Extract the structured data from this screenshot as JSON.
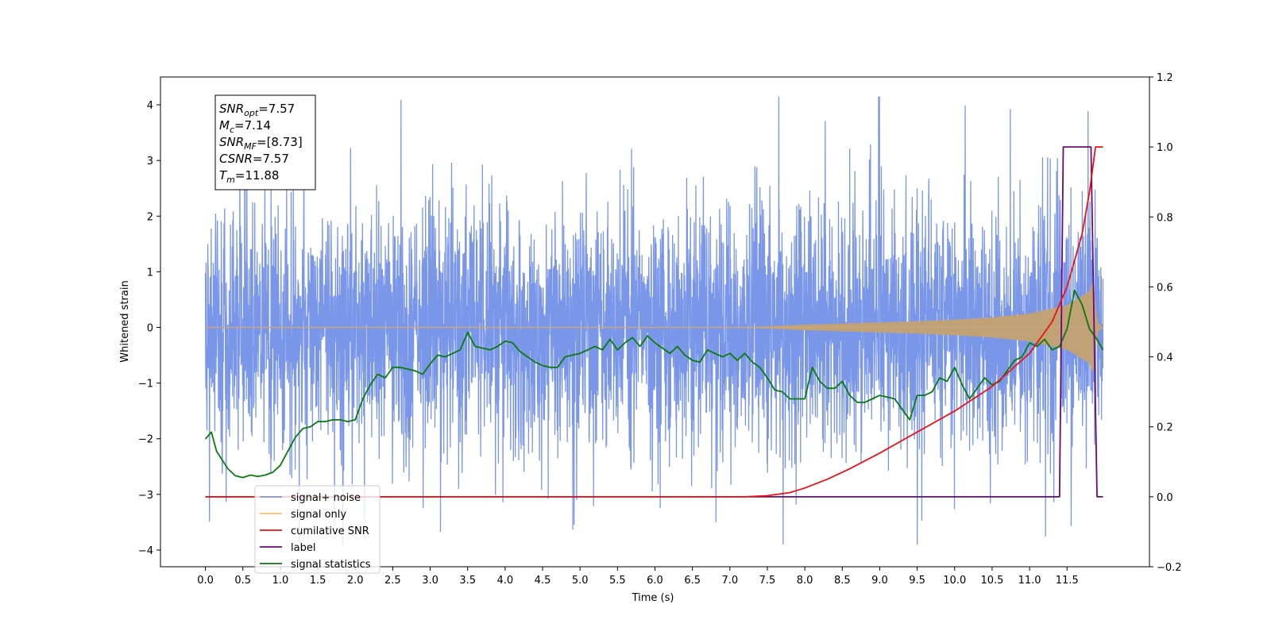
{
  "chart_data": {
    "type": "line",
    "title": "",
    "xlabel": "Time (s)",
    "ylabel": "Whitened strain",
    "xlim": [
      -0.6,
      12.6
    ],
    "ylim": [
      -4.3,
      4.5
    ],
    "ylim_right": [
      -0.2,
      1.2
    ],
    "grid": false,
    "x_ticks": [
      0.0,
      0.5,
      1.0,
      1.5,
      2.0,
      2.5,
      3.0,
      3.5,
      4.0,
      4.5,
      5.0,
      5.5,
      6.0,
      6.5,
      7.0,
      7.5,
      8.0,
      8.5,
      9.0,
      9.5,
      10.0,
      10.5,
      11.0,
      11.5
    ],
    "x_tick_labels": [
      "0.0",
      "0.5",
      "1.0",
      "1.5",
      "2.0",
      "2.5",
      "3.0",
      "3.5",
      "4.0",
      "4.5",
      "5.0",
      "5.5",
      "6.0",
      "6.5",
      "7.0",
      "7.5",
      "8.0",
      "8.5",
      "9.0",
      "9.5",
      "10.0",
      "10.5",
      "11.0",
      "11.5"
    ],
    "y_ticks_left": [
      -4,
      -3,
      -2,
      -1,
      0,
      1,
      2,
      3,
      4
    ],
    "y_tick_labels_left": [
      "−4",
      "−3",
      "−2",
      "−1",
      "0",
      "1",
      "2",
      "3",
      "4"
    ],
    "y_ticks_right": [
      -0.2,
      0.0,
      0.2,
      0.4,
      0.6,
      0.8,
      1.0,
      1.2
    ],
    "y_tick_labels_right": [
      "−0.2",
      "0.0",
      "0.2",
      "0.4",
      "0.6",
      "0.8",
      "1.0",
      "1.2"
    ],
    "legend": {
      "placement": "lower-left",
      "entries": [
        {
          "label": "signal+ noise",
          "color": "#7a96e8"
        },
        {
          "label": "signal only",
          "color": "#f5c070"
        },
        {
          "label": "cumilative SNR",
          "color": "#ee1111"
        },
        {
          "label": "label",
          "color": "#6b0a75"
        },
        {
          "label": "signal statistics",
          "color": "#0a7a0a"
        }
      ]
    },
    "annotation": {
      "lines": [
        {
          "sym": "SNR",
          "sub": "opt",
          "rest": "=7.57"
        },
        {
          "sym": "M",
          "sub": "c",
          "rest": "=7.14"
        },
        {
          "sym": "SNR",
          "sub": "MF",
          "rest": "=[8.73]"
        },
        {
          "sym": "CSNR",
          "sub": "",
          "rest": "=7.57"
        },
        {
          "sym": "T",
          "sub": "m",
          "rest": "=11.88"
        }
      ]
    },
    "series": [
      {
        "name": "signal+ noise",
        "axis": "left",
        "color": "#7a96e8",
        "x_range": [
          0.0,
          11.98
        ],
        "amplitude_envelope": 1.6,
        "spike_max": 4.15,
        "spike_min": -3.9
      },
      {
        "name": "signal only",
        "axis": "left",
        "color": "#f5c070",
        "x": [
          0.0,
          7.0,
          7.5,
          8.0,
          8.5,
          9.0,
          9.5,
          10.0,
          10.5,
          11.0,
          11.5,
          11.8,
          11.85,
          11.9,
          11.98
        ],
        "envelope": [
          0.0,
          0.0,
          0.02,
          0.05,
          0.07,
          0.09,
          0.11,
          0.14,
          0.18,
          0.25,
          0.4,
          0.65,
          0.9,
          0.1,
          0.0
        ]
      },
      {
        "name": "cumilative SNR",
        "axis": "right",
        "color": "#ee1111",
        "x": [
          0.0,
          7.2,
          7.5,
          7.8,
          8.0,
          8.3,
          8.6,
          9.0,
          9.5,
          10.0,
          10.5,
          11.0,
          11.3,
          11.5,
          11.7,
          11.8,
          11.88,
          11.98
        ],
        "y": [
          0.0,
          0.0,
          0.003,
          0.012,
          0.025,
          0.05,
          0.08,
          0.125,
          0.185,
          0.245,
          0.315,
          0.41,
          0.5,
          0.6,
          0.75,
          0.87,
          1.0,
          1.0
        ]
      },
      {
        "name": "label",
        "axis": "right",
        "color": "#6b0a75",
        "x": [
          0.0,
          11.4,
          11.45,
          11.82,
          11.9,
          11.98
        ],
        "y": [
          0.0,
          0.0,
          1.0,
          1.0,
          0.0,
          0.0
        ]
      },
      {
        "name": "signal statistics",
        "axis": "right",
        "color": "#0a7a0a",
        "x": [
          0.0,
          0.08,
          0.15,
          0.3,
          0.4,
          0.5,
          0.6,
          0.7,
          0.8,
          0.9,
          1.0,
          1.1,
          1.2,
          1.3,
          1.4,
          1.5,
          1.6,
          1.7,
          1.8,
          1.9,
          2.0,
          2.1,
          2.2,
          2.3,
          2.4,
          2.5,
          2.6,
          2.7,
          2.8,
          2.9,
          3.0,
          3.1,
          3.2,
          3.3,
          3.4,
          3.5,
          3.6,
          3.7,
          3.8,
          3.9,
          4.0,
          4.1,
          4.2,
          4.3,
          4.4,
          4.5,
          4.6,
          4.7,
          4.8,
          4.9,
          5.0,
          5.1,
          5.2,
          5.3,
          5.4,
          5.5,
          5.6,
          5.7,
          5.8,
          5.9,
          6.0,
          6.1,
          6.2,
          6.3,
          6.4,
          6.5,
          6.6,
          6.7,
          6.8,
          6.9,
          7.0,
          7.1,
          7.2,
          7.3,
          7.4,
          7.5,
          7.6,
          7.7,
          7.8,
          7.9,
          8.0,
          8.1,
          8.2,
          8.3,
          8.4,
          8.5,
          8.6,
          8.7,
          8.8,
          8.9,
          9.0,
          9.1,
          9.2,
          9.3,
          9.4,
          9.5,
          9.6,
          9.7,
          9.8,
          9.9,
          10.0,
          10.1,
          10.2,
          10.3,
          10.4,
          10.5,
          10.6,
          10.7,
          10.8,
          10.9,
          11.0,
          11.1,
          11.2,
          11.3,
          11.4,
          11.5,
          11.6,
          11.7,
          11.8,
          11.9,
          11.98
        ],
        "y": [
          0.165,
          0.185,
          0.13,
          0.08,
          0.06,
          0.055,
          0.062,
          0.058,
          0.062,
          0.07,
          0.09,
          0.13,
          0.17,
          0.195,
          0.2,
          0.215,
          0.215,
          0.22,
          0.22,
          0.215,
          0.22,
          0.28,
          0.32,
          0.35,
          0.34,
          0.37,
          0.37,
          0.365,
          0.36,
          0.35,
          0.38,
          0.405,
          0.4,
          0.41,
          0.42,
          0.47,
          0.43,
          0.425,
          0.42,
          0.43,
          0.445,
          0.44,
          0.415,
          0.4,
          0.385,
          0.375,
          0.37,
          0.37,
          0.4,
          0.405,
          0.41,
          0.42,
          0.43,
          0.42,
          0.45,
          0.42,
          0.44,
          0.455,
          0.43,
          0.46,
          0.44,
          0.425,
          0.41,
          0.43,
          0.405,
          0.39,
          0.385,
          0.42,
          0.41,
          0.4,
          0.41,
          0.39,
          0.41,
          0.385,
          0.37,
          0.34,
          0.305,
          0.3,
          0.28,
          0.28,
          0.28,
          0.37,
          0.33,
          0.31,
          0.31,
          0.33,
          0.29,
          0.27,
          0.27,
          0.28,
          0.29,
          0.285,
          0.28,
          0.25,
          0.22,
          0.29,
          0.29,
          0.3,
          0.34,
          0.33,
          0.37,
          0.32,
          0.28,
          0.31,
          0.34,
          0.32,
          0.33,
          0.36,
          0.39,
          0.4,
          0.44,
          0.43,
          0.45,
          0.42,
          0.43,
          0.48,
          0.59,
          0.55,
          0.48,
          0.45,
          0.42
        ]
      }
    ]
  }
}
